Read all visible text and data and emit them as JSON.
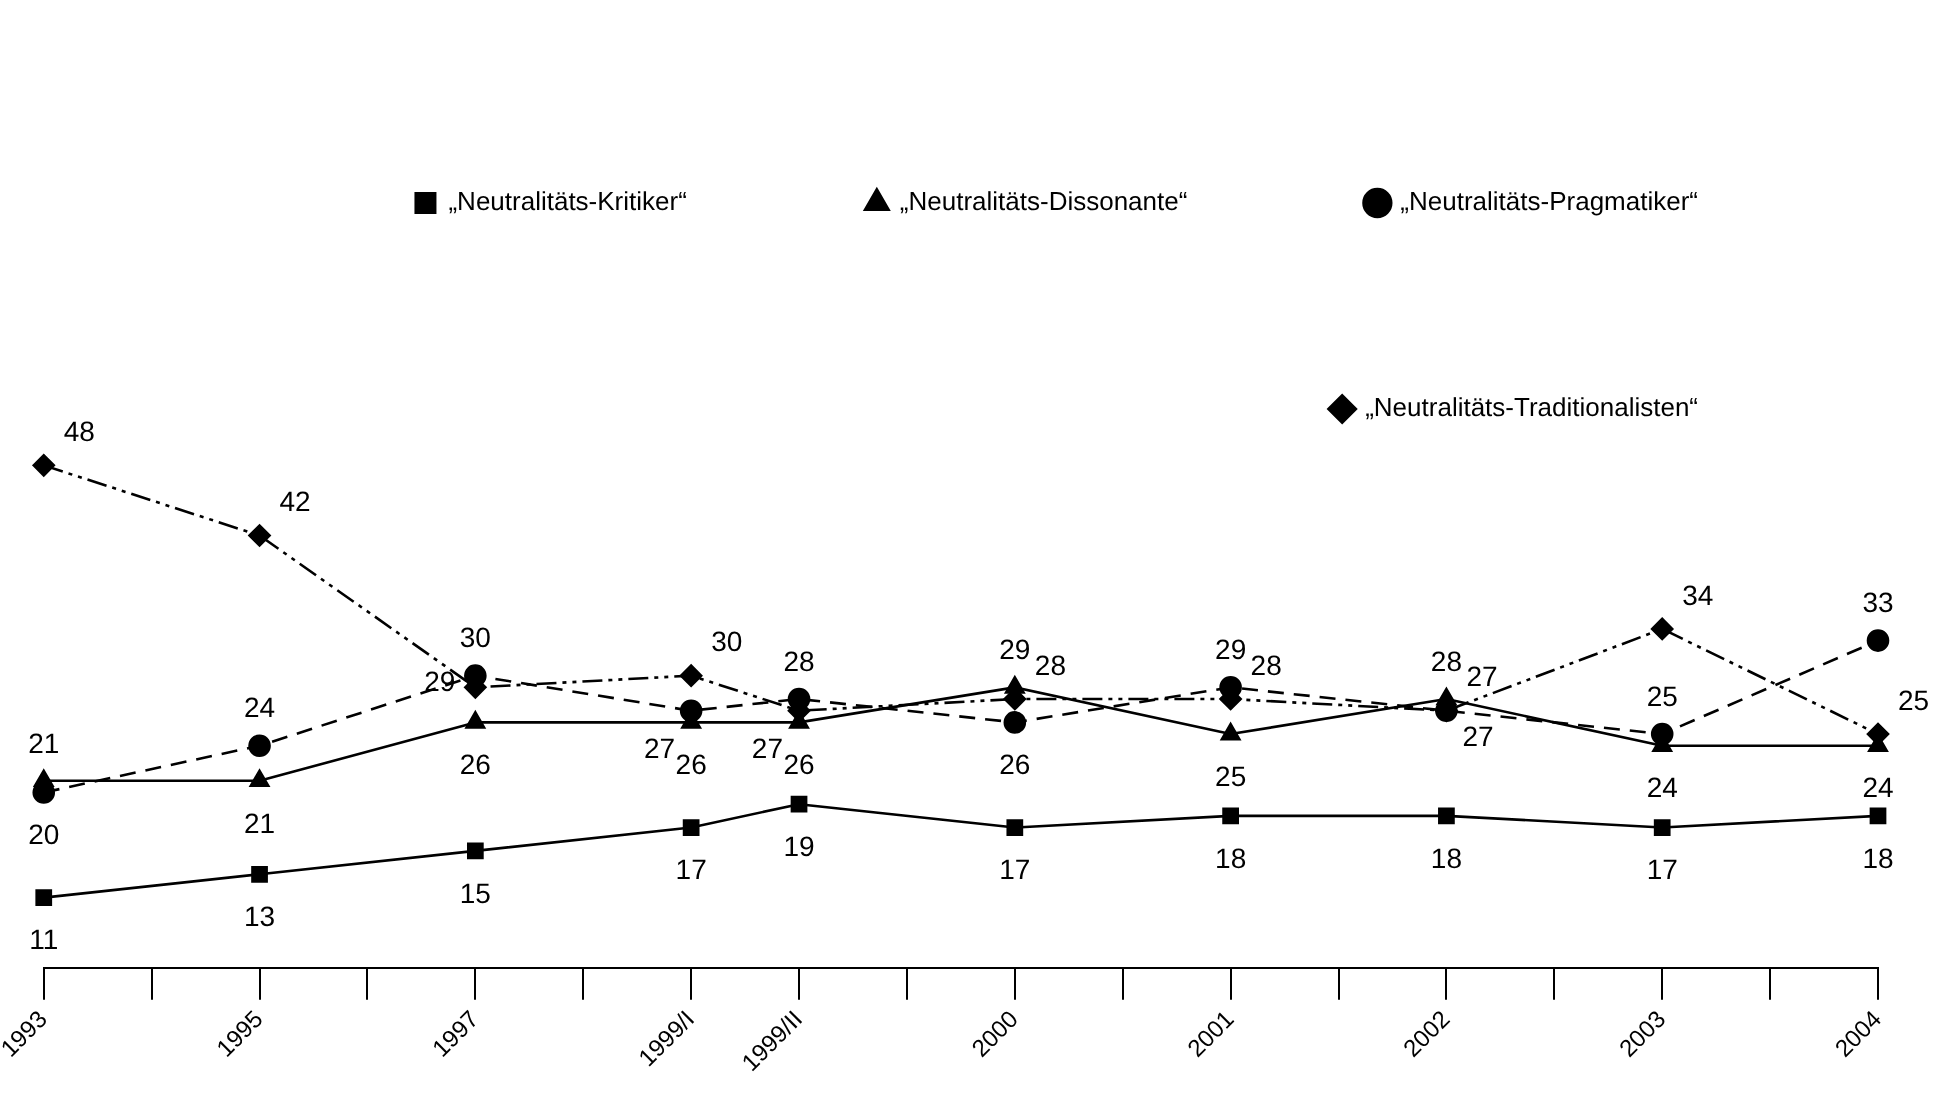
{
  "chart_data": {
    "type": "line",
    "categories": [
      "1993",
      null,
      "1995",
      null,
      "1997",
      null,
      "1999/I",
      "1999/II",
      null,
      "2000",
      null,
      "2001",
      null,
      "2002",
      null,
      "2003",
      null,
      "2004"
    ],
    "series": [
      {
        "name": "„Neutralitäts-Kritiker“",
        "color": "#000000",
        "marker": "square",
        "line_style": "solid",
        "values": [
          11,
          null,
          13,
          null,
          15,
          null,
          17,
          19,
          null,
          17,
          null,
          18,
          null,
          18,
          null,
          17,
          null,
          18
        ]
      },
      {
        "name": "„Neutralitäts-Dissonante“",
        "color": "#000000",
        "marker": "triangle",
        "line_style": "solid",
        "values": [
          21,
          null,
          21,
          null,
          26,
          null,
          26,
          26,
          null,
          29,
          null,
          25,
          null,
          28,
          null,
          24,
          null,
          24
        ]
      },
      {
        "name": "„Neutralitäts-Pragmatiker“",
        "color": "#000000",
        "marker": "circle",
        "line_style": "dashed",
        "values": [
          20,
          null,
          24,
          null,
          30,
          null,
          27,
          28,
          null,
          26,
          null,
          29,
          null,
          27,
          null,
          25,
          null,
          33
        ]
      },
      {
        "name": "„Neutralitäts-Traditionalisten“",
        "color": "#000000",
        "marker": "diamond",
        "line_style": "dashdotdot",
        "values": [
          48,
          null,
          42,
          null,
          29,
          null,
          30,
          27,
          null,
          28,
          null,
          28,
          null,
          27,
          null,
          34,
          null,
          25
        ]
      }
    ],
    "data_labels": true,
    "legend": "top right",
    "grid": false
  }
}
